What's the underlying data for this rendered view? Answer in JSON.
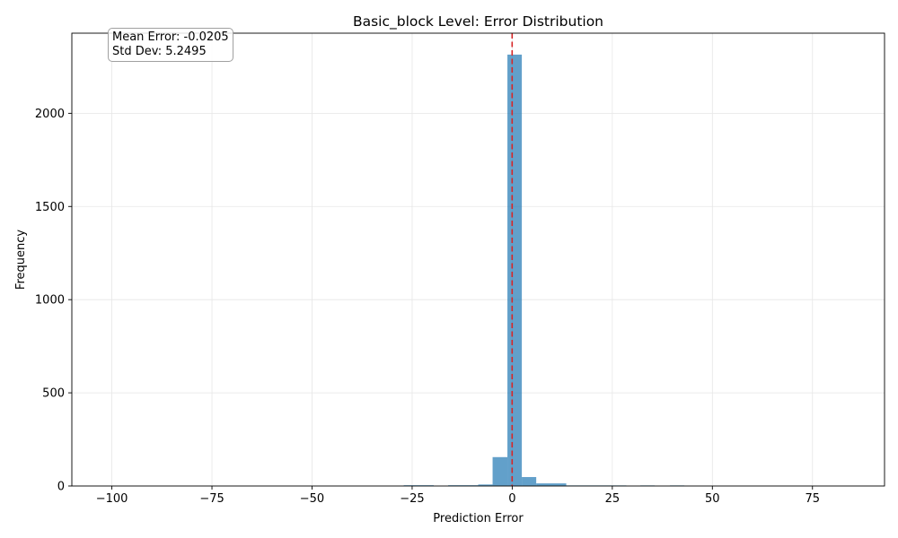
{
  "chart_data": {
    "type": "bar",
    "title": "Basic_block Level: Error Distribution",
    "xlabel": "Prediction Error",
    "ylabel": "Frequency",
    "xlim": [
      -110,
      93
    ],
    "ylim": [
      0,
      2430
    ],
    "xticks": [
      -100,
      -75,
      -50,
      -25,
      0,
      25,
      50,
      75
    ],
    "xtick_labels": [
      "−100",
      "−75",
      "−50",
      "−25",
      "0",
      "25",
      "50",
      "75"
    ],
    "yticks": [
      0,
      500,
      1000,
      1500,
      2000
    ],
    "ytick_labels": [
      "0",
      "500",
      "1000",
      "1500",
      "2000"
    ],
    "grid": true,
    "bar_color": "#1f77b4",
    "mean_line_color": "#d62728",
    "mean_line_x": -0.0205,
    "bins": [
      {
        "left": -27.1,
        "right": -19.6,
        "count": 4
      },
      {
        "left": -16.0,
        "right": -8.5,
        "count": 4
      },
      {
        "left": -8.5,
        "right": -4.9,
        "count": 8
      },
      {
        "left": -4.9,
        "right": -1.2,
        "count": 155
      },
      {
        "left": -1.2,
        "right": 2.4,
        "count": 2315
      },
      {
        "left": 2.4,
        "right": 6.0,
        "count": 48
      },
      {
        "left": 6.0,
        "right": 13.5,
        "count": 14
      },
      {
        "left": 13.5,
        "right": 28.5,
        "count": 3
      },
      {
        "left": 32.0,
        "right": 35.6,
        "count": 3
      },
      {
        "left": 39.4,
        "right": 43.0,
        "count": 3
      }
    ],
    "annotations": {
      "mean": "Mean Error: -0.0205",
      "std": "Std Dev: 5.2495"
    }
  }
}
